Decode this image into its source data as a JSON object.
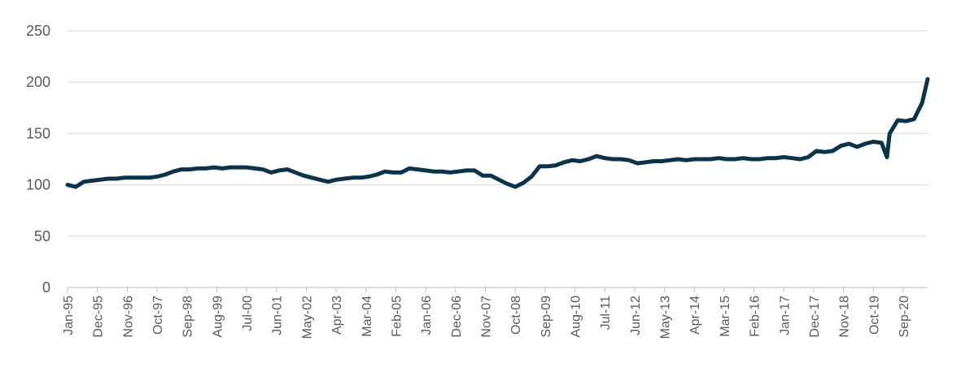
{
  "chart_data": {
    "type": "line",
    "title": "",
    "xlabel": "",
    "ylabel": "",
    "ylim": [
      0,
      250
    ],
    "y_ticks": [
      "0",
      "50",
      "100",
      "150",
      "200",
      "250"
    ],
    "x_tick_labels": [
      "Jan-95",
      "Dec-95",
      "Nov-96",
      "Oct-97",
      "Sep-98",
      "Aug-99",
      "Jul-00",
      "Jun-01",
      "May-02",
      "Apr-03",
      "Mar-04",
      "Feb-05",
      "Jan-06",
      "Dec-06",
      "Nov-07",
      "Oct-08",
      "Sep-09",
      "Aug-10",
      "Jul-11",
      "Jun-12",
      "May-13",
      "Apr-14",
      "Mar-15",
      "Feb-16",
      "Jan-17",
      "Dec-17",
      "Nov-18",
      "Oct-19",
      "Sep-20"
    ],
    "grid": true,
    "legend": "none",
    "line_color": "#0d3349",
    "series": [
      {
        "x": [
          "Jan-95",
          "Apr-95",
          "Jul-95",
          "Oct-95",
          "Jan-96",
          "Apr-96",
          "Jul-96",
          "Oct-96",
          "Jan-97",
          "Apr-97",
          "Jul-97",
          "Oct-97",
          "Jan-98",
          "Apr-98",
          "Jul-98",
          "Oct-98",
          "Jan-99",
          "Apr-99",
          "Jul-99",
          "Oct-99",
          "Jan-00",
          "Apr-00",
          "Jul-00",
          "Oct-00",
          "Jan-01",
          "Apr-01",
          "Jul-01",
          "Oct-01",
          "Jan-02",
          "Apr-02",
          "Jul-02",
          "Oct-02",
          "Jan-03",
          "Apr-03",
          "Jul-03",
          "Oct-03",
          "Jan-04",
          "Apr-04",
          "Jul-04",
          "Oct-04",
          "Jan-05",
          "Apr-05",
          "Jul-05",
          "Oct-05",
          "Jan-06",
          "Apr-06",
          "Jul-06",
          "Oct-06",
          "Jan-07",
          "Apr-07",
          "Jul-07",
          "Oct-07",
          "Jan-08",
          "Apr-08",
          "Jul-08",
          "Oct-08",
          "Jan-09",
          "Apr-09",
          "Jul-09",
          "Oct-09",
          "Jan-10",
          "Apr-10",
          "Jul-10",
          "Oct-10",
          "Jan-11",
          "Apr-11",
          "Jul-11",
          "Oct-11",
          "Jan-12",
          "Apr-12",
          "Jul-12",
          "Oct-12",
          "Jan-13",
          "Apr-13",
          "Jul-13",
          "Oct-13",
          "Jan-14",
          "Apr-14",
          "Jul-14",
          "Oct-14",
          "Jan-15",
          "Apr-15",
          "Jul-15",
          "Oct-15",
          "Jan-16",
          "Apr-16",
          "Jul-16",
          "Oct-16",
          "Jan-17",
          "Apr-17",
          "Jul-17",
          "Oct-17",
          "Jan-18",
          "Apr-18",
          "Jul-18",
          "Oct-18",
          "Jan-19",
          "Apr-19",
          "Jul-19",
          "Oct-19",
          "Jan-20",
          "Mar-20",
          "Apr-20",
          "Jul-20",
          "Oct-20",
          "Jan-21",
          "Apr-21",
          "Jun-21"
        ],
        "values": [
          100,
          98,
          103,
          104,
          105,
          106,
          106,
          107,
          107,
          107,
          107,
          108,
          110,
          113,
          115,
          115,
          116,
          116,
          117,
          116,
          117,
          117,
          117,
          116,
          115,
          112,
          114,
          115,
          112,
          109,
          107,
          105,
          103,
          105,
          106,
          107,
          107,
          108,
          110,
          113,
          112,
          112,
          116,
          115,
          114,
          113,
          113,
          112,
          113,
          114,
          114,
          109,
          109,
          105,
          101,
          98,
          102,
          108,
          118,
          118,
          119,
          122,
          124,
          123,
          125,
          128,
          126,
          125,
          125,
          124,
          121,
          122,
          123,
          123,
          124,
          125,
          124,
          125,
          125,
          125,
          126,
          125,
          125,
          126,
          125,
          125,
          126,
          126,
          127,
          126,
          125,
          127,
          133,
          132,
          133,
          138,
          140,
          137,
          140,
          142,
          141,
          127,
          150,
          163,
          162,
          164,
          180,
          203
        ]
      }
    ]
  }
}
